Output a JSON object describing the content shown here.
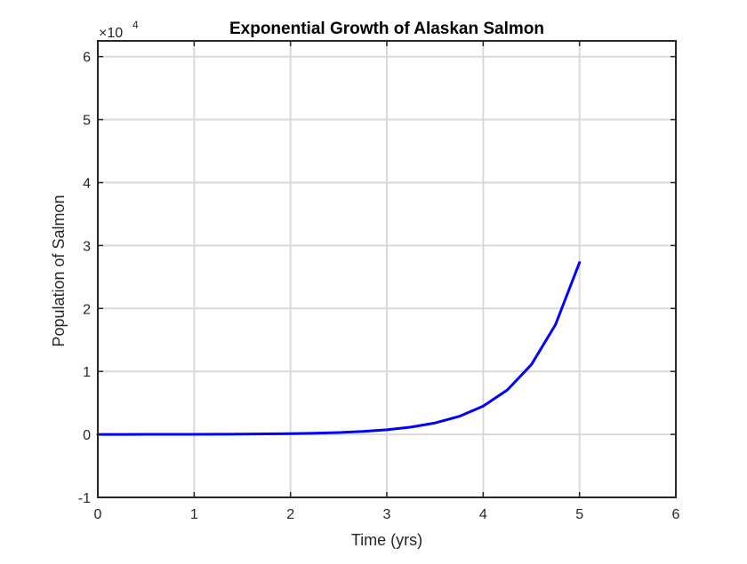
{
  "chart_data": {
    "type": "line",
    "title": "Exponential Growth of Alaskan Salmon",
    "xlabel": "Time (yrs)",
    "ylabel": "Population of Salmon",
    "xlim": [
      0,
      6
    ],
    "ylim": [
      -1,
      6.25
    ],
    "y_scale_exponent_label": {
      "base": "×10",
      "exponent": "4"
    },
    "x_ticks": [
      "0",
      "1",
      "2",
      "3",
      "4",
      "5",
      "6"
    ],
    "y_ticks": [
      "-1",
      "0",
      "1",
      "2",
      "3",
      "4",
      "5",
      "6"
    ],
    "grid": true,
    "series": [
      {
        "color": "#0000ff",
        "x": [
          0,
          0.25,
          0.5,
          0.75,
          1,
          1.25,
          1.5,
          1.75,
          2,
          2.25,
          2.5,
          2.75,
          3,
          3.25,
          3.5,
          3.75,
          4,
          4.25,
          4.5,
          4.75,
          5
        ],
        "y": [
          0.0003,
          0.0005,
          0.0008,
          0.0013,
          0.002,
          0.0031,
          0.0049,
          0.0077,
          0.0121,
          0.019,
          0.0299,
          0.0469,
          0.0737,
          0.1158,
          0.1819,
          0.2858,
          0.449,
          0.705,
          1.108,
          1.741,
          2.73
        ]
      }
    ]
  }
}
